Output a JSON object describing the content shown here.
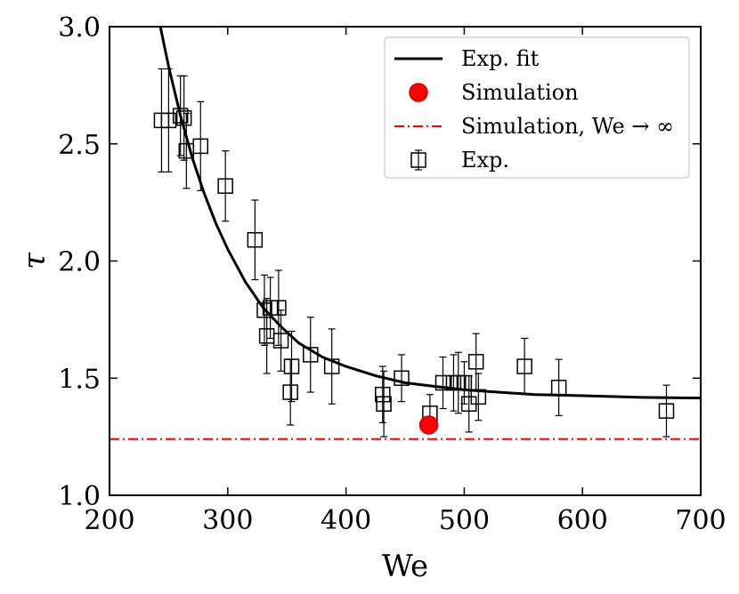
{
  "chart_data": {
    "type": "scatter",
    "title": "",
    "xlabel": "We",
    "ylabel": "τ",
    "xlim": [
      200,
      700
    ],
    "ylim": [
      1.0,
      3.0
    ],
    "xticks": [
      200,
      300,
      400,
      500,
      600,
      700
    ],
    "yticks": [
      1.0,
      1.5,
      2.0,
      2.5,
      3.0
    ],
    "x_tick_labels": [
      "200",
      "300",
      "400",
      "500",
      "600",
      "700"
    ],
    "y_tick_labels": [
      "1.0",
      "1.5",
      "2.0",
      "2.5",
      "3.0"
    ],
    "grid": false,
    "legend_position": "top-right",
    "legend": [
      {
        "label": "Exp. fit",
        "kind": "line",
        "color": "#000000"
      },
      {
        "label": "Simulation",
        "kind": "circle",
        "color": "#ff0000"
      },
      {
        "label": "Simulation, We → ∞",
        "kind": "dashdot",
        "color": "#ff0000"
      },
      {
        "label": "Exp.",
        "kind": "square-errorbar",
        "color": "#000000"
      }
    ],
    "series": [
      {
        "name": "Exp. fit",
        "type": "line",
        "color": "#000000",
        "x": [
          243,
          250,
          260,
          270,
          280,
          290,
          300,
          315,
          330,
          345,
          360,
          380,
          400,
          425,
          450,
          475,
          500,
          530,
          560,
          600,
          650,
          700
        ],
        "y": [
          3.0,
          2.83,
          2.62,
          2.44,
          2.29,
          2.16,
          2.05,
          1.91,
          1.8,
          1.72,
          1.65,
          1.59,
          1.55,
          1.51,
          1.48,
          1.465,
          1.45,
          1.44,
          1.43,
          1.425,
          1.418,
          1.415
        ]
      },
      {
        "name": "Simulation",
        "type": "scatter",
        "color": "#ff0000",
        "x": [
          470
        ],
        "y": [
          1.3
        ]
      },
      {
        "name": "Simulation, We → ∞",
        "type": "hline",
        "color": "#ff0000",
        "y": 1.24
      },
      {
        "name": "Exp.",
        "type": "errorbar",
        "color": "#000000",
        "x": [
          244,
          250,
          260,
          263,
          265,
          277,
          298,
          323,
          331,
          333,
          336,
          343,
          345,
          353,
          354,
          370,
          388,
          431,
          432,
          447,
          471,
          482,
          491,
          495,
          500,
          504,
          510,
          512,
          551,
          580,
          671
        ],
        "y": [
          2.6,
          2.6,
          2.62,
          2.61,
          2.47,
          2.49,
          2.32,
          2.09,
          1.79,
          1.68,
          1.8,
          1.8,
          1.66,
          1.44,
          1.55,
          1.6,
          1.55,
          1.43,
          1.39,
          1.5,
          1.35,
          1.48,
          1.48,
          1.48,
          1.48,
          1.39,
          1.57,
          1.42,
          1.55,
          1.46,
          1.36
        ],
        "err": [
          0.22,
          0.22,
          0.17,
          0.18,
          0.16,
          0.19,
          0.15,
          0.17,
          0.15,
          0.16,
          0.13,
          0.16,
          0.13,
          0.14,
          0.15,
          0.16,
          0.16,
          0.12,
          0.14,
          0.1,
          0.08,
          0.11,
          0.12,
          0.13,
          0.09,
          0.12,
          0.12,
          0.1,
          0.12,
          0.12,
          0.11
        ]
      }
    ]
  }
}
